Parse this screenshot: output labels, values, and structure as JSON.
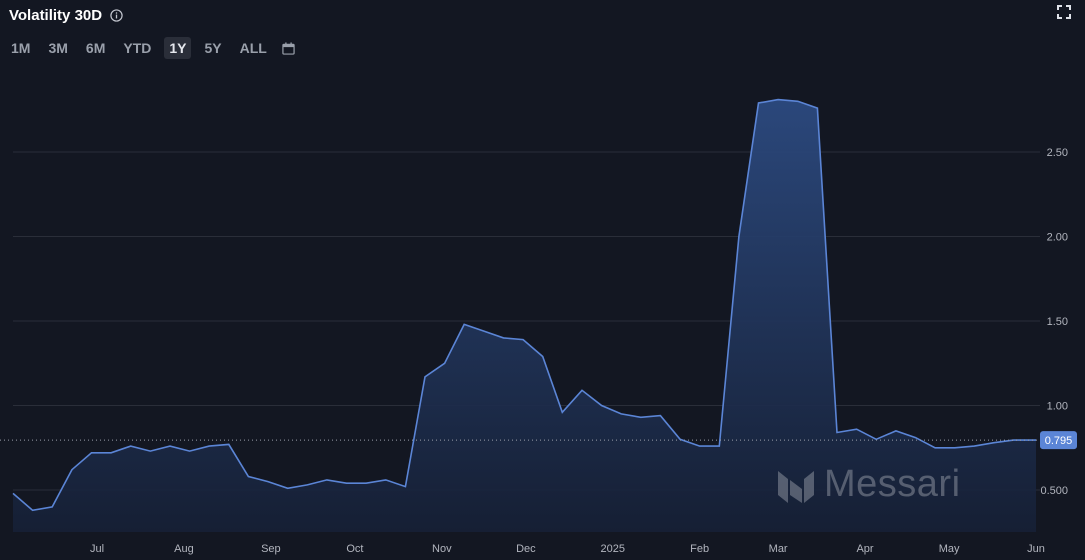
{
  "header": {
    "title": "Volatility 30D",
    "info_icon": "info-icon",
    "fullscreen_icon": "fullscreen-icon"
  },
  "ranges": {
    "items": [
      "1M",
      "3M",
      "6M",
      "YTD",
      "1Y",
      "5Y",
      "ALL"
    ],
    "active": "1Y",
    "calendar_icon": "calendar-icon"
  },
  "watermark": {
    "text": "Messari"
  },
  "colors": {
    "background": "#131722",
    "line": "#5b85d6",
    "fill_top": "#2c4a80",
    "fill_bottom": "#162036",
    "grid": "#2a2e39",
    "label_badge": "#5b85d6"
  },
  "chart_data": {
    "type": "area",
    "title": "Volatility 30D",
    "xlabel": "",
    "ylabel": "",
    "x_ticks": [
      "Jul",
      "Aug",
      "Sep",
      "Oct",
      "Nov",
      "Dec",
      "2025",
      "Feb",
      "Mar",
      "Apr",
      "May",
      "Jun"
    ],
    "y_ticks": [
      "0.500",
      "1.00",
      "1.50",
      "2.00",
      "2.50"
    ],
    "ylim": [
      0.25,
      2.95
    ],
    "grid": true,
    "last_value_label": "0.795",
    "x": [
      "2024-06-01",
      "2024-06-08",
      "2024-06-15",
      "2024-06-22",
      "2024-06-29",
      "2024-07-06",
      "2024-07-13",
      "2024-07-20",
      "2024-07-27",
      "2024-08-03",
      "2024-08-10",
      "2024-08-17",
      "2024-08-24",
      "2024-08-31",
      "2024-09-07",
      "2024-09-14",
      "2024-09-21",
      "2024-09-28",
      "2024-10-05",
      "2024-10-12",
      "2024-10-19",
      "2024-10-26",
      "2024-11-02",
      "2024-11-09",
      "2024-11-16",
      "2024-11-23",
      "2024-11-30",
      "2024-12-07",
      "2024-12-14",
      "2024-12-21",
      "2024-12-28",
      "2025-01-04",
      "2025-01-11",
      "2025-01-18",
      "2025-01-25",
      "2025-02-01",
      "2025-02-08",
      "2025-02-15",
      "2025-02-22",
      "2025-03-01",
      "2025-03-08",
      "2025-03-15",
      "2025-03-22",
      "2025-03-29",
      "2025-04-05",
      "2025-04-12",
      "2025-04-19",
      "2025-04-26",
      "2025-05-03",
      "2025-05-10",
      "2025-05-17",
      "2025-05-24",
      "2025-06-01"
    ],
    "series": [
      {
        "values": [
          0.48,
          0.38,
          0.4,
          0.62,
          0.72,
          0.72,
          0.76,
          0.73,
          0.76,
          0.73,
          0.76,
          0.77,
          0.58,
          0.55,
          0.51,
          0.53,
          0.56,
          0.54,
          0.54,
          0.56,
          0.52,
          1.17,
          1.25,
          1.48,
          1.44,
          1.4,
          1.39,
          1.29,
          0.96,
          1.09,
          1.0,
          0.95,
          0.93,
          0.94,
          0.8,
          0.76,
          0.76,
          2.0,
          2.79,
          2.81,
          2.8,
          2.76,
          0.84,
          0.86,
          0.8,
          0.85,
          0.81,
          0.75,
          0.75,
          0.76,
          0.78,
          0.795,
          0.795
        ]
      }
    ]
  }
}
